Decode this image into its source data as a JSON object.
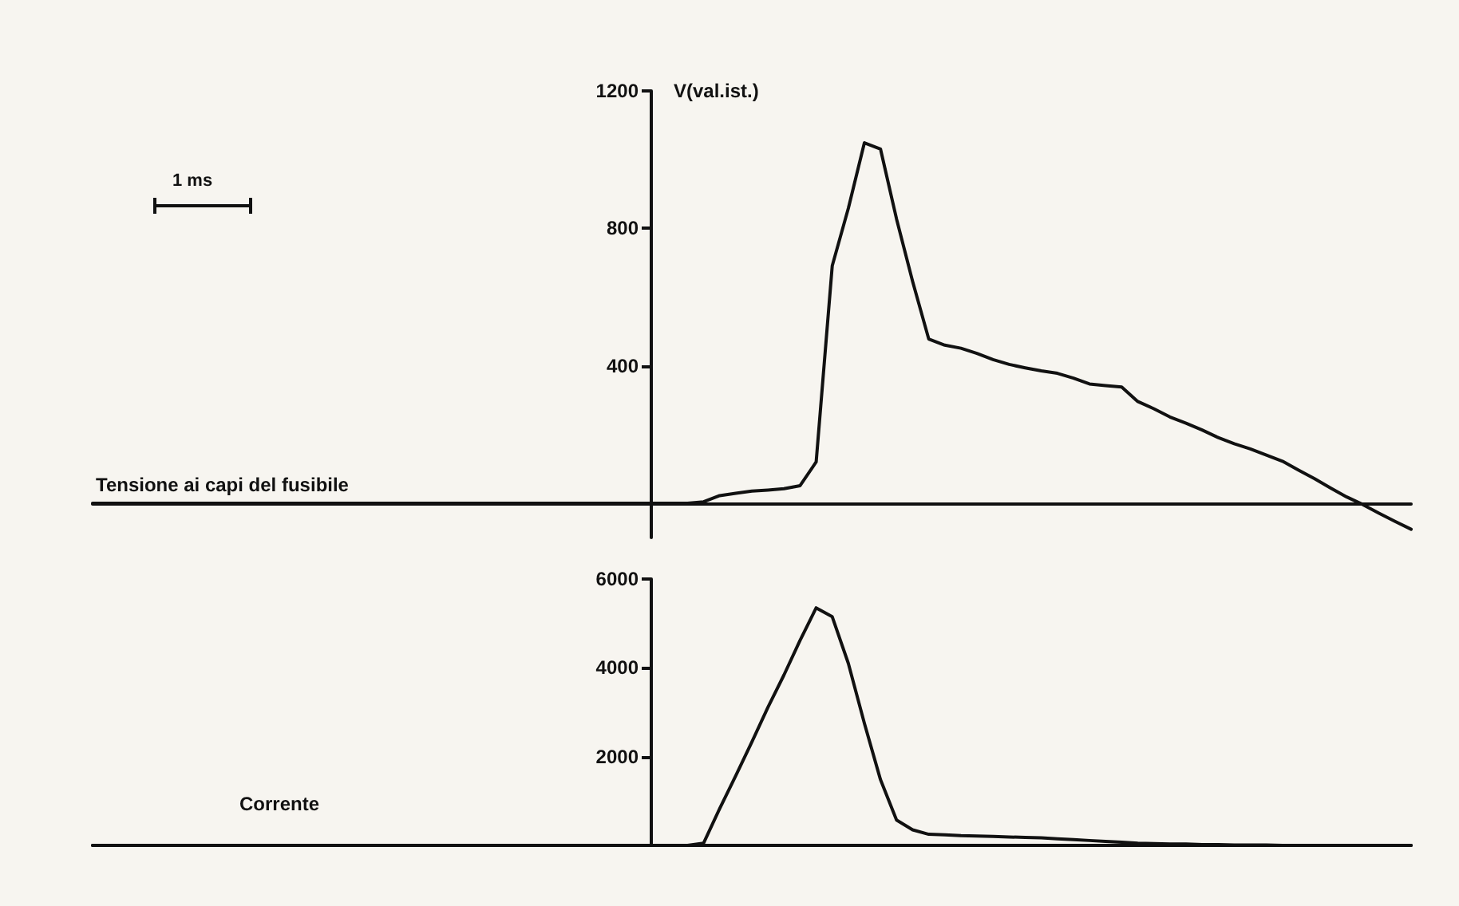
{
  "chart_data": [
    {
      "type": "line",
      "ylabel": "V(val.ist.)",
      "annotations": [
        "1 ms"
      ],
      "marker": "none",
      "tick_labels": "y",
      "categories": [
        null,
        null,
        null,
        null,
        null,
        null,
        null,
        null,
        null,
        null,
        null,
        null,
        null,
        null,
        null,
        null,
        null,
        null,
        null,
        null,
        null,
        null,
        null,
        null,
        null,
        null,
        null,
        null,
        null,
        null,
        null,
        null,
        null,
        null,
        null,
        null,
        null,
        null,
        null,
        null,
        null,
        null,
        null,
        null,
        null,
        null,
        null,
        null,
        null,
        null,
        null,
        null,
        null,
        null,
        null,
        null,
        null,
        null,
        null,
        null,
        null,
        null,
        null,
        null,
        null,
        null,
        null,
        null,
        null,
        null,
        null,
        null,
        null,
        null,
        null,
        null,
        null,
        null,
        null,
        null,
        null,
        null,
        null
      ],
      "ylim": [
        -100,
        1200
      ],
      "yticks": [
        400,
        800,
        1200
      ],
      "series": [
        {
          "name": "Tensione ai capi del fusibile",
          "color": "#111111",
          "values": [
            0,
            0,
            0,
            0,
            0,
            0,
            0,
            0,
            0,
            0,
            0,
            0,
            0,
            0,
            0,
            0,
            0,
            0,
            0,
            0,
            0,
            0,
            0,
            0,
            0,
            0,
            0,
            0,
            0,
            0,
            0,
            0,
            0,
            0,
            0,
            0,
            0,
            0,
            4,
            22,
            29,
            35,
            38,
            42,
            51,
            120,
            691,
            858,
            1049,
            1031,
            827,
            645,
            478,
            460,
            451,
            436,
            418,
            404,
            394,
            385,
            378,
            364,
            347,
            342,
            338,
            296,
            275,
            251,
            233,
            213,
            191,
            173,
            158,
            140,
            122,
            96,
            71,
            44,
            18,
            -4,
            -29,
            -53,
            -76
          ]
        }
      ]
    },
    {
      "type": "line",
      "marker": "none",
      "tick_labels": "y",
      "categories": [
        null,
        null,
        null,
        null,
        null,
        null,
        null,
        null,
        null,
        null,
        null,
        null,
        null,
        null,
        null,
        null,
        null,
        null,
        null,
        null,
        null,
        null,
        null,
        null,
        null,
        null,
        null,
        null,
        null,
        null,
        null,
        null,
        null,
        null,
        null,
        null,
        null,
        null,
        null,
        null,
        null,
        null,
        null,
        null,
        null,
        null,
        null,
        null,
        null,
        null,
        null,
        null,
        null,
        null,
        null,
        null,
        null,
        null,
        null,
        null,
        null,
        null,
        null,
        null,
        null,
        null,
        null,
        null,
        null,
        null,
        null,
        null,
        null,
        null,
        null,
        null,
        null,
        null,
        null,
        null,
        null,
        null,
        null
      ],
      "ylim": [
        0,
        6000
      ],
      "yticks": [
        2000,
        4000,
        6000
      ],
      "series": [
        {
          "name": "Corrente",
          "color": "#111111",
          "values": [
            0,
            0,
            0,
            0,
            0,
            0,
            0,
            0,
            0,
            0,
            0,
            0,
            0,
            0,
            0,
            0,
            0,
            0,
            0,
            0,
            0,
            0,
            0,
            0,
            0,
            0,
            0,
            0,
            0,
            0,
            0,
            0,
            0,
            0,
            0,
            0,
            0,
            0,
            50,
            830,
            1570,
            2330,
            3110,
            3840,
            4620,
            5350,
            5150,
            4100,
            2750,
            1480,
            570,
            350,
            250,
            240,
            220,
            210,
            200,
            190,
            180,
            170,
            150,
            130,
            110,
            90,
            70,
            50,
            40,
            30,
            30,
            20,
            20,
            10,
            10,
            10,
            0,
            0,
            0,
            0,
            0,
            0,
            0,
            0,
            0
          ]
        }
      ]
    }
  ]
}
